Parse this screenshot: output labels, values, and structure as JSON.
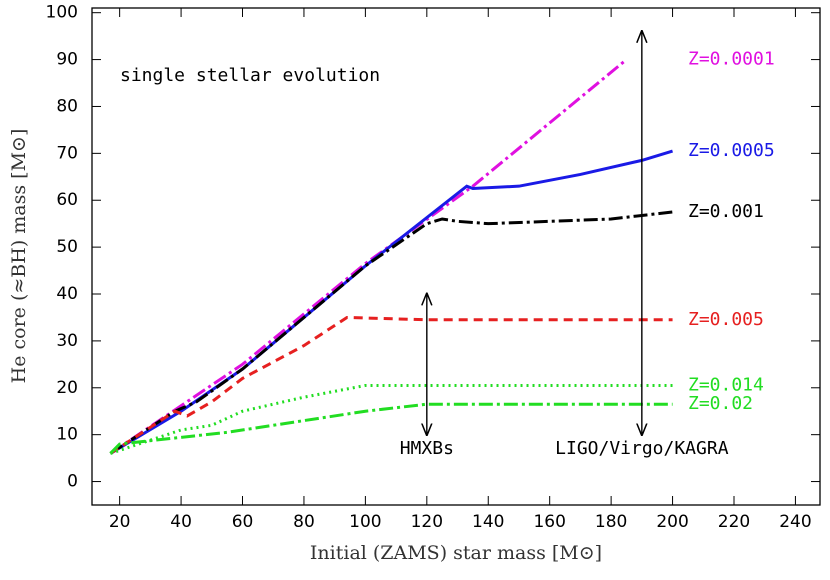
{
  "chart_data": {
    "type": "line",
    "annotation": "single stellar evolution",
    "x_label": "Initial (ZAMS) star mass [M⊙]",
    "y_label": "He core (≈BH) mass [M⊙]",
    "xlim": [
      11,
      248
    ],
    "ylim": [
      -5,
      101
    ],
    "xticks": [
      20,
      40,
      60,
      80,
      100,
      120,
      140,
      160,
      180,
      200,
      220,
      240
    ],
    "yticks": [
      0,
      10,
      20,
      30,
      40,
      50,
      60,
      70,
      80,
      90,
      100
    ],
    "series": [
      {
        "name": "Z=0.0001",
        "color": "#e010e0",
        "style": "dashdot",
        "x": [
          17,
          60,
          100,
          135,
          185
        ],
        "values": [
          6,
          25,
          46.5,
          63,
          90
        ]
      },
      {
        "name": "Z=0.0005",
        "color": "#1a1ae6",
        "style": "solid",
        "x": [
          17,
          40,
          60,
          100,
          133,
          135,
          150,
          170,
          190,
          200
        ],
        "values": [
          6,
          15,
          24,
          46,
          63,
          62.5,
          63,
          65.5,
          68.5,
          70.5
        ]
      },
      {
        "name": "Z=0.001",
        "color": "#000000",
        "style": "dashdot",
        "x": [
          17,
          38,
          45,
          60,
          100,
          120,
          125,
          130,
          140,
          160,
          180,
          200
        ],
        "values": [
          6,
          15,
          17,
          24,
          46,
          55,
          56,
          55.5,
          55,
          55.5,
          56,
          57.5
        ]
      },
      {
        "name": "Z=0.005",
        "color": "#e62020",
        "style": "dashed",
        "x": [
          17,
          38,
          42,
          50,
          60,
          80,
          94,
          120,
          160,
          200
        ],
        "values": [
          6,
          15,
          14,
          17,
          22,
          29,
          35,
          34.5,
          34.5,
          34.5
        ]
      },
      {
        "name": "Z=0.014",
        "color": "#22dd22",
        "style": "dotted",
        "x": [
          17,
          40,
          50,
          60,
          80,
          100,
          200
        ],
        "values": [
          6,
          11,
          12,
          15,
          18,
          20.5,
          20.5
        ]
      },
      {
        "name": "Z=0.02",
        "color": "#22dd22",
        "style": "dashdot",
        "x": [
          17,
          20,
          55,
          80,
          100,
          120,
          200
        ],
        "values": [
          6,
          8,
          10.5,
          13,
          15,
          16.5,
          16.5
        ]
      }
    ],
    "arrows": [
      {
        "text": "HMXBs",
        "x": 120,
        "y_from": 10,
        "y_to": 40
      },
      {
        "text": "LIGO/Virgo/KAGRA",
        "x": 190,
        "y_from": 10,
        "y_to": 96
      }
    ]
  }
}
